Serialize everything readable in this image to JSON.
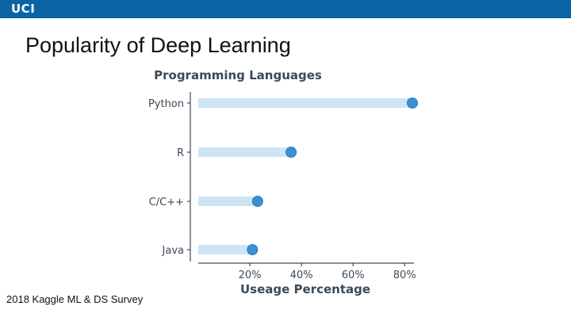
{
  "header": {
    "logo_text": "UCI",
    "bar_color": "#0a64a4"
  },
  "slide": {
    "title": "Popularity of Deep Learning",
    "source": "2018 Kaggle ML & DS Survey"
  },
  "chart_data": {
    "type": "bar",
    "orientation": "horizontal",
    "style": "lollipop",
    "title": "Programming Languages",
    "xlabel": "Useage Percentage",
    "ylabel": "",
    "categories": [
      "Python",
      "R",
      "C/C++",
      "Java"
    ],
    "values": [
      83,
      36,
      23,
      21
    ],
    "xlim": [
      0,
      83
    ],
    "xticks": [
      20,
      40,
      60,
      80
    ],
    "xtick_labels": [
      "20%",
      "40%",
      "60%",
      "80%"
    ],
    "grid": false,
    "colors": {
      "bar": "#cfe4f3",
      "marker": "#3b90d4",
      "marker_edge": "#2a7cc0",
      "text": "#3d4a57"
    }
  }
}
